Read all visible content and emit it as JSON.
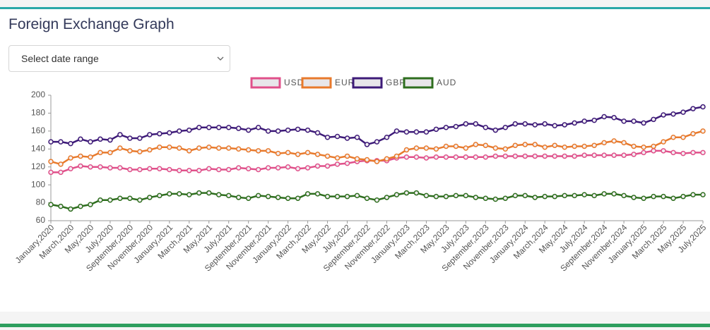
{
  "select_placeholder": "Select date range",
  "chart_data": {
    "type": "line",
    "title": "Foreign Exchange Graph",
    "categories": [
      "January,2020",
      null,
      "March,2020",
      null,
      "May,2020",
      null,
      "July,2020",
      null,
      "September,2020",
      null,
      "November,2020",
      null,
      "January,2021",
      null,
      "March,2021",
      null,
      "May,2021",
      null,
      "July,2021",
      null,
      "September,2021",
      null,
      "November,2021",
      null,
      "January,2022",
      null,
      "March,2022",
      null,
      "May,2022",
      null,
      "July,2022",
      null,
      "September,2022",
      null,
      "November,2022",
      null,
      "January,2023",
      null,
      "March,2023",
      null,
      "May,2023",
      null,
      "July,2023",
      null,
      "September,2023",
      null,
      "November,2023",
      null,
      "January,2024",
      null,
      "March,2024",
      null,
      "May,2024",
      null,
      "July,2024",
      null,
      "September,2024",
      null,
      "November,2024",
      null,
      "January,2025",
      null,
      "March,2025",
      null,
      "May,2025",
      null,
      "July,2025"
    ],
    "series": [
      {
        "name": "USD",
        "color": "#e0508a",
        "values": [
          114,
          114,
          118,
          121,
          120,
          120,
          119,
          119,
          117,
          117,
          118,
          118,
          117,
          116,
          116,
          116,
          118,
          117,
          117,
          119,
          118,
          117,
          119,
          119,
          120,
          118,
          119,
          121,
          121,
          123,
          124,
          126,
          127,
          127,
          127,
          130,
          131,
          131,
          130,
          131,
          131,
          131,
          131,
          131,
          131,
          132,
          132,
          132,
          132,
          132,
          132,
          132,
          132,
          132,
          133,
          133,
          133,
          133,
          133,
          134,
          136,
          138,
          138,
          136,
          135,
          136,
          136
        ]
      },
      {
        "name": "EUR",
        "color": "#e87a2c",
        "values": [
          126,
          123,
          130,
          132,
          131,
          136,
          136,
          141,
          138,
          137,
          139,
          142,
          142,
          141,
          138,
          141,
          142,
          141,
          141,
          140,
          139,
          138,
          138,
          135,
          136,
          134,
          136,
          134,
          132,
          130,
          132,
          129,
          128,
          126,
          129,
          132,
          139,
          141,
          141,
          140,
          143,
          143,
          141,
          145,
          144,
          141,
          140,
          144,
          145,
          145,
          142,
          144,
          142,
          143,
          143,
          144,
          147,
          149,
          147,
          143,
          142,
          143,
          148,
          153,
          153,
          157,
          160
        ]
      },
      {
        "name": "GBP",
        "color": "#3d1a78",
        "values": [
          148,
          148,
          146,
          151,
          148,
          151,
          150,
          156,
          152,
          152,
          156,
          157,
          158,
          160,
          161,
          164,
          164,
          164,
          164,
          163,
          161,
          164,
          160,
          160,
          161,
          162,
          161,
          158,
          153,
          154,
          152,
          153,
          145,
          148,
          153,
          160,
          159,
          159,
          159,
          162,
          164,
          165,
          168,
          168,
          164,
          161,
          164,
          168,
          168,
          167,
          168,
          166,
          167,
          169,
          171,
          172,
          176,
          175,
          171,
          171,
          169,
          173,
          178,
          179,
          181,
          185,
          187
        ]
      },
      {
        "name": "AUD",
        "color": "#2e6e1e",
        "values": [
          78,
          76,
          73,
          76,
          78,
          83,
          83,
          85,
          85,
          83,
          86,
          88,
          90,
          90,
          89,
          91,
          91,
          89,
          88,
          86,
          85,
          88,
          87,
          86,
          85,
          85,
          90,
          90,
          87,
          87,
          87,
          88,
          85,
          83,
          86,
          89,
          91,
          91,
          88,
          87,
          87,
          88,
          88,
          86,
          85,
          84,
          85,
          88,
          88,
          86,
          87,
          87,
          88,
          88,
          89,
          88,
          90,
          90,
          88,
          86,
          85,
          87,
          87,
          85,
          87,
          89,
          89
        ]
      }
    ],
    "ylim": [
      60,
      200
    ],
    "yticks": [
      60,
      80,
      100,
      120,
      140,
      160,
      180,
      200
    ],
    "grid": false,
    "legend": "top"
  }
}
